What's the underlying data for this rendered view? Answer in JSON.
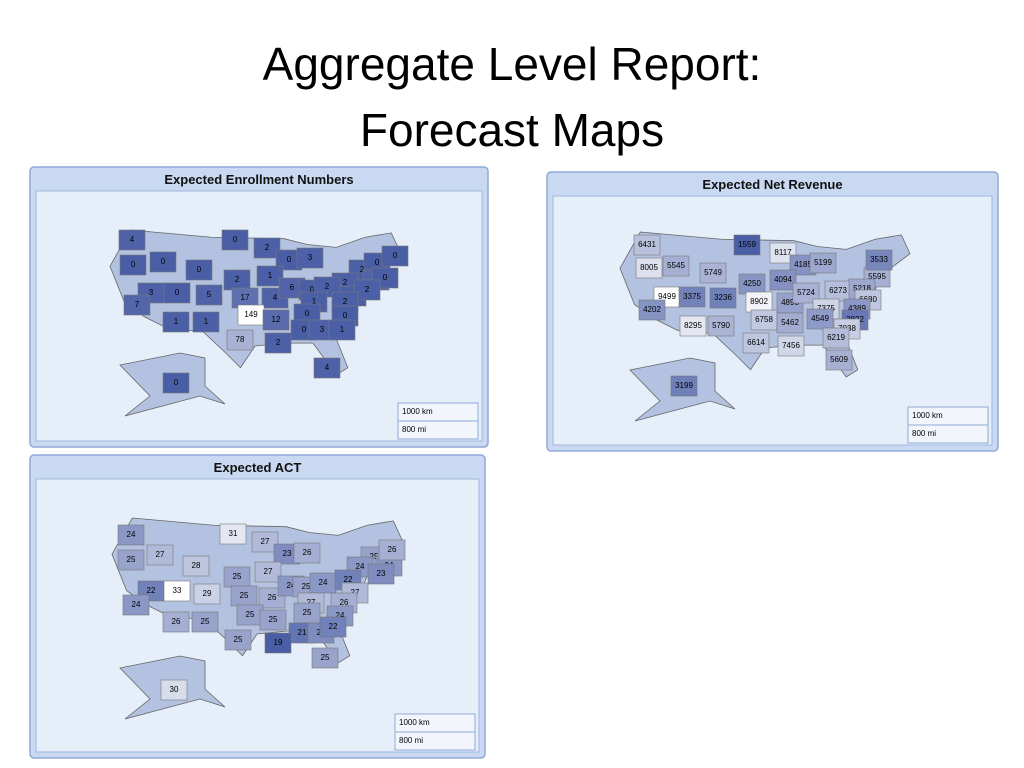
{
  "title_lines": [
    "Aggregate Level Report:",
    "Forecast Maps"
  ],
  "low_color": "#4a5ea6",
  "high_color": "#ffffff",
  "maps": [
    {
      "title": "Expected Enrollment Numbers",
      "scale": [
        "1000 km",
        "800 mi"
      ],
      "values": [
        4,
        0,
        0,
        0,
        2,
        0,
        3,
        0,
        2,
        1,
        2,
        0,
        0,
        2,
        6,
        0,
        3,
        0,
        5,
        17,
        4,
        6,
        0,
        2,
        1,
        2,
        7,
        1,
        2,
        149,
        12,
        0,
        0,
        1,
        1,
        0,
        3,
        1,
        78,
        2,
        4,
        0
      ]
    },
    {
      "title": "Expected Net Revenue",
      "scale": [
        "1000 km",
        "800 mi"
      ],
      "values": [
        6431,
        8005,
        5545,
        1559,
        8117,
        5749,
        4185,
        5199,
        4094,
        4250,
        5595,
        3533,
        9499,
        3375,
        3236,
        8902,
        4898,
        5724,
        6273,
        5218,
        6680,
        7375,
        4389,
        4202,
        4549,
        2822,
        8295,
        5790,
        6758,
        5462,
        7038,
        6219,
        6614,
        7456,
        5609,
        3199
      ]
    },
    {
      "title": "Expected ACT",
      "scale": [
        "1000 km",
        "800 mi"
      ],
      "values": [
        24,
        25,
        27,
        31,
        27,
        23,
        26,
        28,
        27,
        25,
        25,
        24,
        26,
        24,
        23,
        22,
        33,
        29,
        25,
        26,
        24,
        25,
        24,
        22,
        27,
        24,
        27,
        26,
        25,
        25,
        25,
        24,
        26,
        25,
        21,
        23,
        22,
        25,
        19,
        25,
        30
      ]
    }
  ]
}
